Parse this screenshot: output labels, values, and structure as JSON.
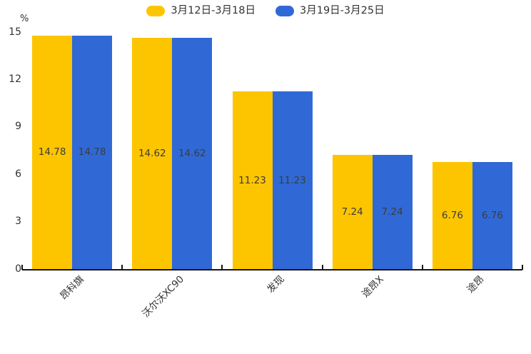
{
  "legend": {
    "items": [
      {
        "label": "3月12日-3月18日",
        "color": "#FDC500"
      },
      {
        "label": "3月19日-3月25日",
        "color": "#3069D6"
      }
    ]
  },
  "y_axis": {
    "unit": "%"
  },
  "chart_data": {
    "type": "bar",
    "title": "",
    "xlabel": "",
    "ylabel": "%",
    "categories": [
      "昂科旗",
      "沃尔沃XC90",
      "发现",
      "途昂X",
      "途昂"
    ],
    "series": [
      {
        "name": "3月12日-3月18日",
        "color": "#FDC500",
        "values": [
          14.78,
          14.62,
          11.23,
          7.24,
          6.76
        ]
      },
      {
        "name": "3月19日-3月25日",
        "color": "#3069D6",
        "values": [
          14.78,
          14.62,
          11.23,
          7.24,
          6.76
        ]
      }
    ],
    "ylim": [
      0,
      15
    ],
    "yticks": [
      0,
      3,
      6,
      9,
      12,
      15
    ],
    "grid": false,
    "legend_position": "top",
    "value_labels": "centered-inside-bars",
    "category_label_rotation_deg": 45
  },
  "colors": {
    "axis": "#151515",
    "tick_text": "#333333",
    "value_text": "#3c3c3c",
    "background": "#ffffff"
  }
}
